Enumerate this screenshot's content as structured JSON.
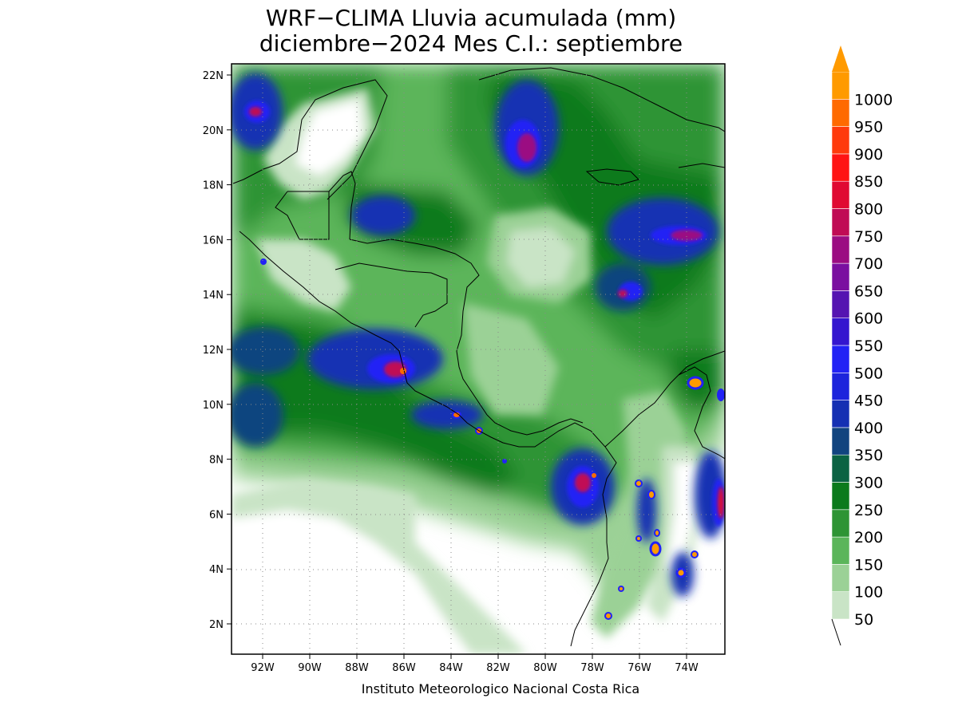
{
  "title": {
    "line1": "WRF−CLIMA Lluvia acumulada (mm)",
    "line2": "diciembre−2024 Mes C.I.: septiembre"
  },
  "credit": "Instituto Meteorologico Nacional Costa Rica",
  "axes": {
    "lon_labels": [
      "92W",
      "90W",
      "88W",
      "86W",
      "84W",
      "82W",
      "80W",
      "78W",
      "76W",
      "74W"
    ],
    "lat_labels": [
      "22N",
      "20N",
      "18N",
      "16N",
      "14N",
      "12N",
      "10N",
      "8N",
      "6N",
      "4N",
      "2N"
    ],
    "lon_range_deg_west": [
      93.2,
      72.8
    ],
    "lat_range_deg_north": [
      1.0,
      22.4
    ],
    "grid": true
  },
  "legend": {
    "levels": [
      {
        "value": "50",
        "color": "#c9e4c6"
      },
      {
        "value": "100",
        "color": "#9bd196"
      },
      {
        "value": "150",
        "color": "#5bb55a"
      },
      {
        "value": "200",
        "color": "#2e9434"
      },
      {
        "value": "250",
        "color": "#0b7a1c"
      },
      {
        "value": "300",
        "color": "#0b6343"
      },
      {
        "value": "350",
        "color": "#11447f"
      },
      {
        "value": "400",
        "color": "#1530b3"
      },
      {
        "value": "450",
        "color": "#1d24dc"
      },
      {
        "value": "500",
        "color": "#2222f5"
      },
      {
        "value": "550",
        "color": "#3416cf"
      },
      {
        "value": "600",
        "color": "#5514b1"
      },
      {
        "value": "650",
        "color": "#7a0fa0"
      },
      {
        "value": "700",
        "color": "#9b0c82"
      },
      {
        "value": "750",
        "color": "#c00b55"
      },
      {
        "value": "800",
        "color": "#e00a33"
      },
      {
        "value": "850",
        "color": "#ff1414"
      },
      {
        "value": "900",
        "color": "#ff3a0c"
      },
      {
        "value": "950",
        "color": "#ff6a00"
      },
      {
        "value": "1000",
        "color": "#ff9a00"
      }
    ]
  }
}
